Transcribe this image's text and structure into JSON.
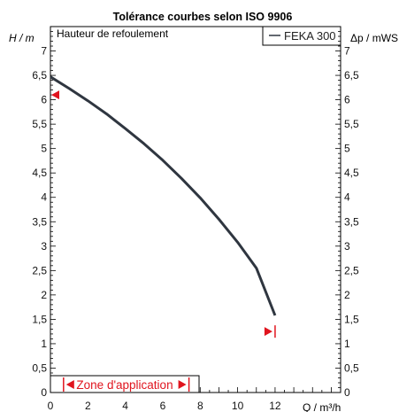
{
  "chart_data": {
    "type": "line",
    "title": "Tolérance courbes selon ISO 9906",
    "subtitle": "Hauteur de refoulement",
    "ylabel_left": "H / m",
    "ylabel_right": "Δp / mWS",
    "xlabel": "Q / m³/h",
    "xlim": [
      0,
      15.5
    ],
    "ylim": [
      0,
      7.5
    ],
    "x_ticks": [
      "0",
      "2",
      "4",
      "6",
      "8",
      "10",
      "12"
    ],
    "y_ticks": [
      "0",
      "0,5",
      "1",
      "1,5",
      "2",
      "2,5",
      "3",
      "3,5",
      "4",
      "4,5",
      "5",
      "5,5",
      "6",
      "6,5",
      "7"
    ],
    "legend_position": "top-right",
    "series": [
      {
        "name": "FEKA 300",
        "color": "#2f3640",
        "x": [
          0,
          1,
          2,
          3,
          4,
          5,
          6,
          7,
          8,
          9,
          10,
          11,
          12
        ],
        "y": [
          6.47,
          6.23,
          5.98,
          5.71,
          5.41,
          5.1,
          4.76,
          4.39,
          3.99,
          3.55,
          3.08,
          2.55,
          1.58
        ]
      }
    ],
    "tolerance_markers": [
      {
        "x": 0,
        "y": 6.1,
        "direction": "left"
      },
      {
        "x": 12,
        "y": 1.25,
        "direction": "left"
      }
    ],
    "zone": {
      "label": "Zone d'application",
      "x_start": 0.7,
      "x_end": 7.4,
      "color": "#e0141e"
    },
    "grid": false
  }
}
